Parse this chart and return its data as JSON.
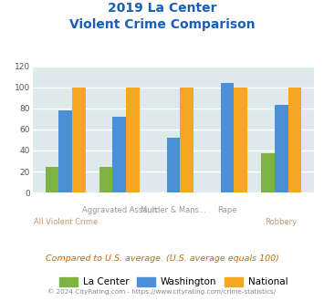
{
  "title_line1": "2019 La Center",
  "title_line2": "Violent Crime Comparison",
  "top_labels": [
    "",
    "Aggravated Assault",
    "Murder & Mans...",
    "Rape",
    ""
  ],
  "bot_labels": [
    "All Violent Crime",
    "",
    "",
    "",
    "Robbery"
  ],
  "la_center": [
    24,
    24,
    0,
    0,
    37
  ],
  "washington": [
    78,
    72,
    52,
    104,
    83
  ],
  "national": [
    100,
    100,
    100,
    100,
    100
  ],
  "color_la_center": "#7cb342",
  "color_washington": "#4a90d9",
  "color_national": "#f5a623",
  "color_bg_chart": "#dde9eb",
  "color_title": "#1a5eb8",
  "color_xlabel_top": "#999999",
  "color_xlabel_bot": "#c8956c",
  "ylabel_max": 120,
  "ylabel_step": 20,
  "footer_text": "Compared to U.S. average. (U.S. average equals 100)",
  "footer_color": "#cc6600",
  "copyright_text": "© 2024 CityRating.com - https://www.cityrating.com/crime-statistics/",
  "copyright_color": "#888888",
  "legend_labels": [
    "La Center",
    "Washington",
    "National"
  ],
  "bar_width": 0.25
}
